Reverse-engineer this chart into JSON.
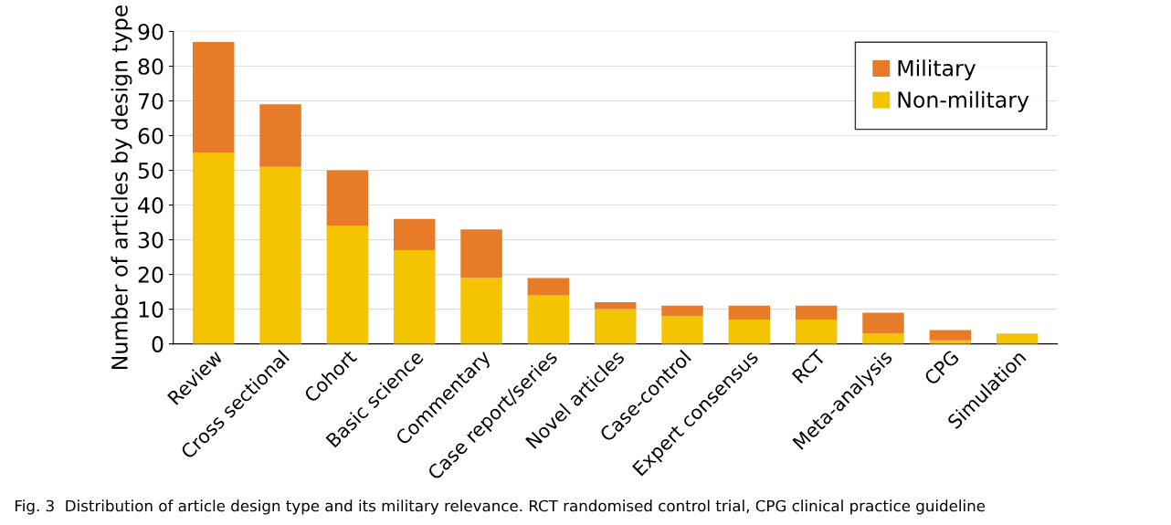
{
  "chart_data": {
    "type": "bar",
    "stacked": true,
    "ylabel": "Number of articles by design type",
    "categories": [
      "Review",
      "Cross sectional",
      "Cohort",
      "Basic science",
      "Commentary",
      "Case report/series",
      "Novel articles",
      "Case-control",
      "Expert consensus",
      "RCT",
      "Meta-analysis",
      "CPG",
      "Simulation"
    ],
    "series": [
      {
        "name": "Non-military",
        "color": "#f5c400",
        "values": [
          55,
          51,
          34,
          27,
          19,
          14,
          10,
          8,
          7,
          7,
          3,
          1,
          3
        ]
      },
      {
        "name": "Military",
        "color": "#e87b27",
        "values": [
          32,
          18,
          16,
          9,
          14,
          5,
          2,
          3,
          4,
          4,
          6,
          3,
          0
        ]
      }
    ],
    "ylim": [
      0,
      90
    ],
    "yticks": [
      0,
      10,
      20,
      30,
      40,
      50,
      60,
      70,
      80,
      90
    ],
    "grid": "y",
    "legend": "top right",
    "annotations": [
      "Fig. 3  Distribution of article design type and its military relevance. RCT randomised control trial, CPG clinical practice guideline"
    ]
  }
}
